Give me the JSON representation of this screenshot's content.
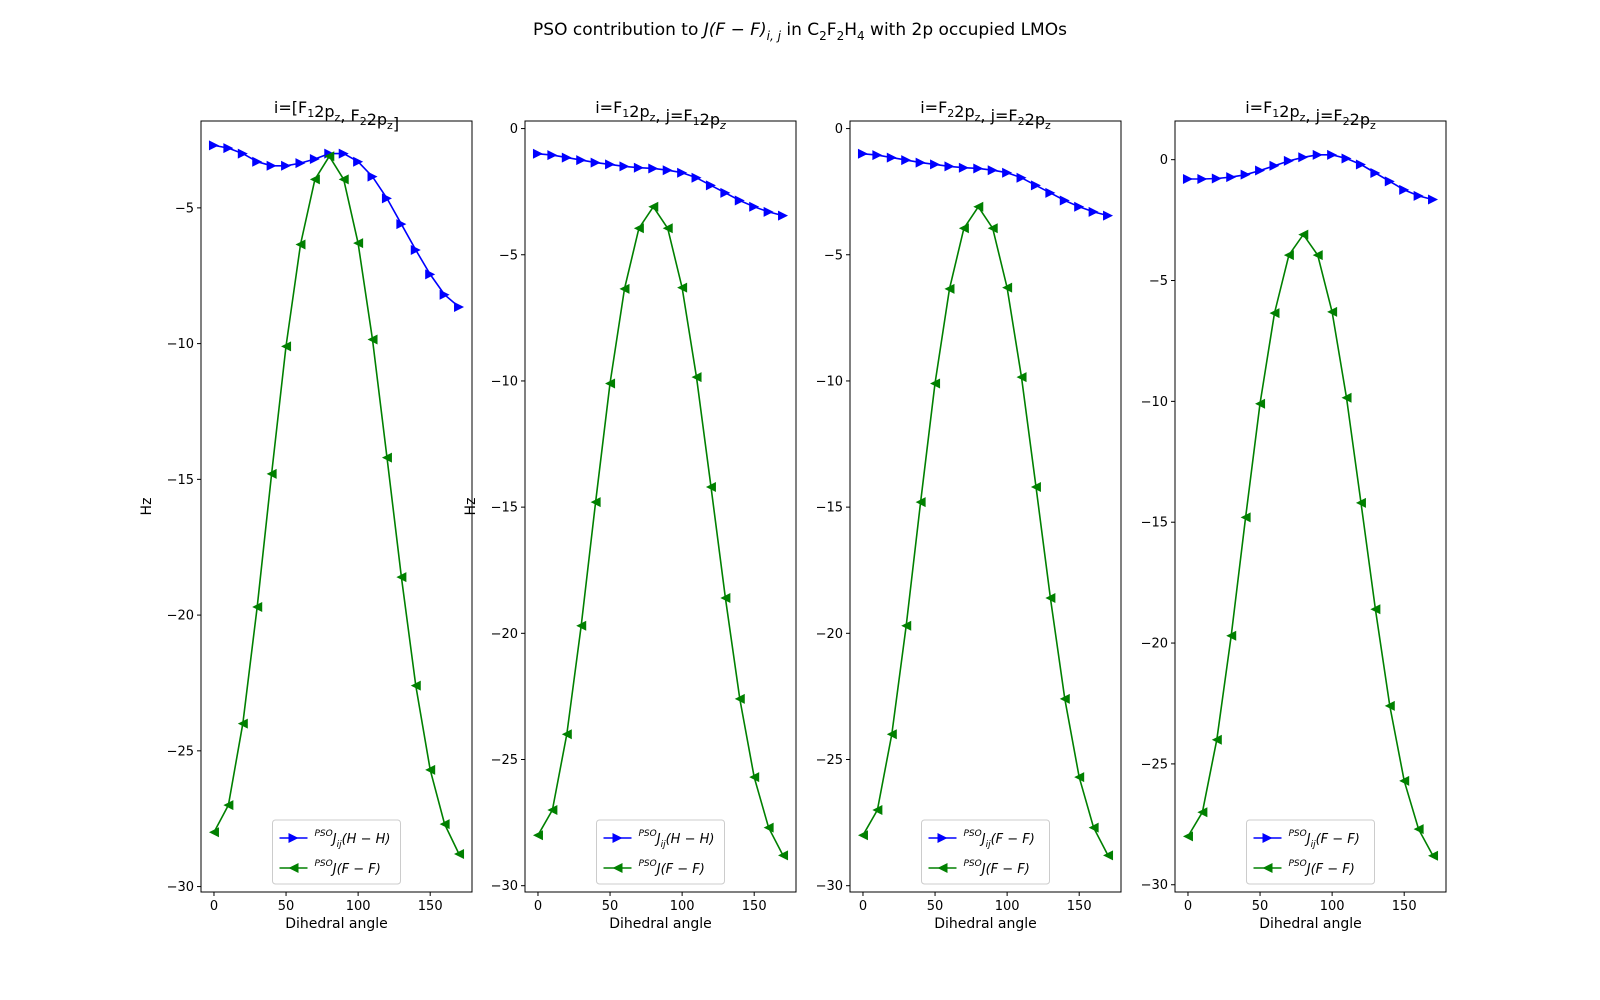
{
  "figure": {
    "title_prefix": "PSO contribution to ",
    "title_math_main": "J(F − F)",
    "title_math_sub": "i, j",
    "title_mid": " in C",
    "title_sub1": "2",
    "title_f": "F",
    "title_sub2": "2",
    "title_h": "H",
    "title_sub3": "4",
    "title_suffix": " with 2p occupied LMOs"
  },
  "colors": {
    "series1": "#0000ff",
    "series2": "#008000"
  },
  "chart_data": [
    {
      "type": "line",
      "title_parts": [
        {
          "t": "i=[F"
        },
        {
          "t": "1",
          "sub": true
        },
        {
          "t": "2p"
        },
        {
          "t": "z",
          "sub": true
        },
        {
          "t": ", F"
        },
        {
          "t": "2",
          "sub": true
        },
        {
          "t": "2p"
        },
        {
          "t": "z",
          "sub": true
        },
        {
          "t": "]"
        }
      ],
      "xlabel": "Dihedral angle",
      "ylabel": "Hz",
      "xlim": [
        -9,
        179
      ],
      "ylim": [
        -30.2,
        -1.8
      ],
      "xticks": [
        0,
        50,
        100,
        150
      ],
      "xtick_labels": [
        "0",
        "50",
        "100",
        "150"
      ],
      "yticks": [
        -30,
        -25,
        -20,
        -15,
        -10,
        -5
      ],
      "ytick_labels": [
        "−30",
        "−25",
        "−20",
        "−15",
        "−10",
        "−5"
      ],
      "legend_position": "lower center",
      "x": [
        0,
        10,
        20,
        30,
        40,
        50,
        60,
        70,
        80,
        90,
        100,
        110,
        120,
        130,
        140,
        150,
        160,
        170
      ],
      "series": [
        {
          "name": "PSOJij(H−H)",
          "legend_sup": "PSO",
          "legend_main": "J",
          "legend_sub": "ij",
          "legend_tail": "(H − H)",
          "marker": "triangle-right",
          "color": "#0000ff",
          "values": [
            -2.7,
            -2.8,
            -3.0,
            -3.3,
            -3.45,
            -3.45,
            -3.35,
            -3.2,
            -3.0,
            -3.0,
            -3.3,
            -3.85,
            -4.65,
            -5.6,
            -6.55,
            -7.45,
            -8.2,
            -8.65
          ]
        },
        {
          "name": "PSOJ(F−F)",
          "legend_sup": "PSO",
          "legend_main": "J",
          "legend_sub": "",
          "legend_tail": "(F − F)",
          "marker": "triangle-left",
          "color": "#008000",
          "values": [
            -28.0,
            -27.0,
            -24.0,
            -19.7,
            -14.8,
            -10.1,
            -6.35,
            -3.95,
            -3.1,
            -3.95,
            -6.3,
            -9.85,
            -14.2,
            -18.6,
            -22.6,
            -25.7,
            -27.7,
            -28.8
          ]
        }
      ]
    },
    {
      "type": "line",
      "title_parts": [
        {
          "t": "i=F"
        },
        {
          "t": "1",
          "sub": true
        },
        {
          "t": "2p"
        },
        {
          "t": "z",
          "sub": true
        },
        {
          "t": ", j=F"
        },
        {
          "t": "1",
          "sub": true
        },
        {
          "t": "2p"
        },
        {
          "t": "z",
          "sub": true,
          "italic": true
        }
      ],
      "xlabel": "Dihedral angle",
      "ylabel": "Hz",
      "xlim": [
        -9,
        179
      ],
      "ylim": [
        -30.25,
        0.3
      ],
      "xticks": [
        0,
        50,
        100,
        150
      ],
      "xtick_labels": [
        "0",
        "50",
        "100",
        "150"
      ],
      "yticks": [
        -30,
        -25,
        -20,
        -15,
        -10,
        -5,
        0
      ],
      "ytick_labels": [
        "−30",
        "−25",
        "−20",
        "−15",
        "−10",
        "−5",
        "0"
      ],
      "legend_position": "lower center",
      "x": [
        0,
        10,
        20,
        30,
        40,
        50,
        60,
        70,
        80,
        90,
        100,
        110,
        120,
        130,
        140,
        150,
        160,
        170
      ],
      "series": [
        {
          "name": "PSOJij(H−H)",
          "legend_sup": "PSO",
          "legend_main": "J",
          "legend_sub": "ij",
          "legend_tail": "(H − H)",
          "marker": "triangle-right",
          "color": "#0000ff",
          "values": [
            -1.0,
            -1.05,
            -1.15,
            -1.25,
            -1.35,
            -1.42,
            -1.5,
            -1.55,
            -1.58,
            -1.65,
            -1.75,
            -1.95,
            -2.25,
            -2.55,
            -2.85,
            -3.1,
            -3.3,
            -3.45
          ]
        },
        {
          "name": "PSOJ(F−F)",
          "legend_sup": "PSO",
          "legend_main": "J",
          "legend_sub": "",
          "legend_tail": "(F − F)",
          "marker": "triangle-left",
          "color": "#008000",
          "values": [
            -28.0,
            -27.0,
            -24.0,
            -19.7,
            -14.8,
            -10.1,
            -6.35,
            -3.95,
            -3.1,
            -3.95,
            -6.3,
            -9.85,
            -14.2,
            -18.6,
            -22.6,
            -25.7,
            -27.7,
            -28.8
          ]
        }
      ]
    },
    {
      "type": "line",
      "title_parts": [
        {
          "t": "i=F"
        },
        {
          "t": "2",
          "sub": true
        },
        {
          "t": "2p"
        },
        {
          "t": "z",
          "sub": true
        },
        {
          "t": ", j=F"
        },
        {
          "t": "2",
          "sub": true
        },
        {
          "t": "2p"
        },
        {
          "t": "z",
          "sub": true
        }
      ],
      "xlabel": "Dihedral angle",
      "ylabel": "",
      "xlim": [
        -9,
        179
      ],
      "ylim": [
        -30.25,
        0.3
      ],
      "xticks": [
        0,
        50,
        100,
        150
      ],
      "xtick_labels": [
        "0",
        "50",
        "100",
        "150"
      ],
      "yticks": [
        -30,
        -25,
        -20,
        -15,
        -10,
        -5,
        0
      ],
      "ytick_labels": [
        "−30",
        "−25",
        "−20",
        "−15",
        "−10",
        "−5",
        "0"
      ],
      "legend_position": "lower center",
      "x": [
        0,
        10,
        20,
        30,
        40,
        50,
        60,
        70,
        80,
        90,
        100,
        110,
        120,
        130,
        140,
        150,
        160,
        170
      ],
      "series": [
        {
          "name": "PSOJij(F−F)",
          "legend_sup": "PSO",
          "legend_main": "J",
          "legend_sub": "ij",
          "legend_tail": "(F − F)",
          "marker": "triangle-right",
          "color": "#0000ff",
          "values": [
            -1.0,
            -1.05,
            -1.15,
            -1.25,
            -1.35,
            -1.42,
            -1.5,
            -1.55,
            -1.58,
            -1.65,
            -1.75,
            -1.95,
            -2.25,
            -2.55,
            -2.85,
            -3.1,
            -3.3,
            -3.45
          ]
        },
        {
          "name": "PSOJ(F−F)",
          "legend_sup": "PSO",
          "legend_main": "J",
          "legend_sub": "",
          "legend_tail": "(F − F)",
          "marker": "triangle-left",
          "color": "#008000",
          "values": [
            -28.0,
            -27.0,
            -24.0,
            -19.7,
            -14.8,
            -10.1,
            -6.35,
            -3.95,
            -3.1,
            -3.95,
            -6.3,
            -9.85,
            -14.2,
            -18.6,
            -22.6,
            -25.7,
            -27.7,
            -28.8
          ]
        }
      ]
    },
    {
      "type": "line",
      "title_parts": [
        {
          "t": "i=F"
        },
        {
          "t": "1",
          "sub": true
        },
        {
          "t": "2p"
        },
        {
          "t": "z",
          "sub": true
        },
        {
          "t": ", j=F"
        },
        {
          "t": "2",
          "sub": true
        },
        {
          "t": "2p"
        },
        {
          "t": "z",
          "sub": true
        }
      ],
      "xlabel": "Dihedral angle",
      "ylabel": "",
      "xlim": [
        -9,
        179
      ],
      "ylim": [
        -30.3,
        1.6
      ],
      "xticks": [
        0,
        50,
        100,
        150
      ],
      "xtick_labels": [
        "0",
        "50",
        "100",
        "150"
      ],
      "yticks": [
        -30,
        -25,
        -20,
        -15,
        -10,
        -5,
        0
      ],
      "ytick_labels": [
        "−30",
        "−25",
        "−20",
        "−15",
        "−10",
        "−5",
        "0"
      ],
      "legend_position": "lower center",
      "x": [
        0,
        10,
        20,
        30,
        40,
        50,
        60,
        70,
        80,
        90,
        100,
        110,
        120,
        130,
        140,
        150,
        160,
        170
      ],
      "series": [
        {
          "name": "PSOJij(F−F)",
          "legend_sup": "PSO",
          "legend_main": "J",
          "legend_sub": "ij",
          "legend_tail": "(F − F)",
          "marker": "triangle-right",
          "color": "#0000ff",
          "values": [
            -0.8,
            -0.8,
            -0.78,
            -0.72,
            -0.62,
            -0.45,
            -0.25,
            -0.05,
            0.1,
            0.2,
            0.2,
            0.05,
            -0.2,
            -0.55,
            -0.9,
            -1.25,
            -1.5,
            -1.65
          ]
        },
        {
          "name": "PSOJ(F−F)",
          "legend_sup": "PSO",
          "legend_main": "J",
          "legend_sub": "",
          "legend_tail": "(F − F)",
          "marker": "triangle-left",
          "color": "#008000",
          "values": [
            -28.0,
            -27.0,
            -24.0,
            -19.7,
            -14.8,
            -10.1,
            -6.35,
            -3.95,
            -3.1,
            -3.95,
            -6.3,
            -9.85,
            -14.2,
            -18.6,
            -22.6,
            -25.7,
            -27.7,
            -28.8
          ]
        }
      ]
    }
  ]
}
